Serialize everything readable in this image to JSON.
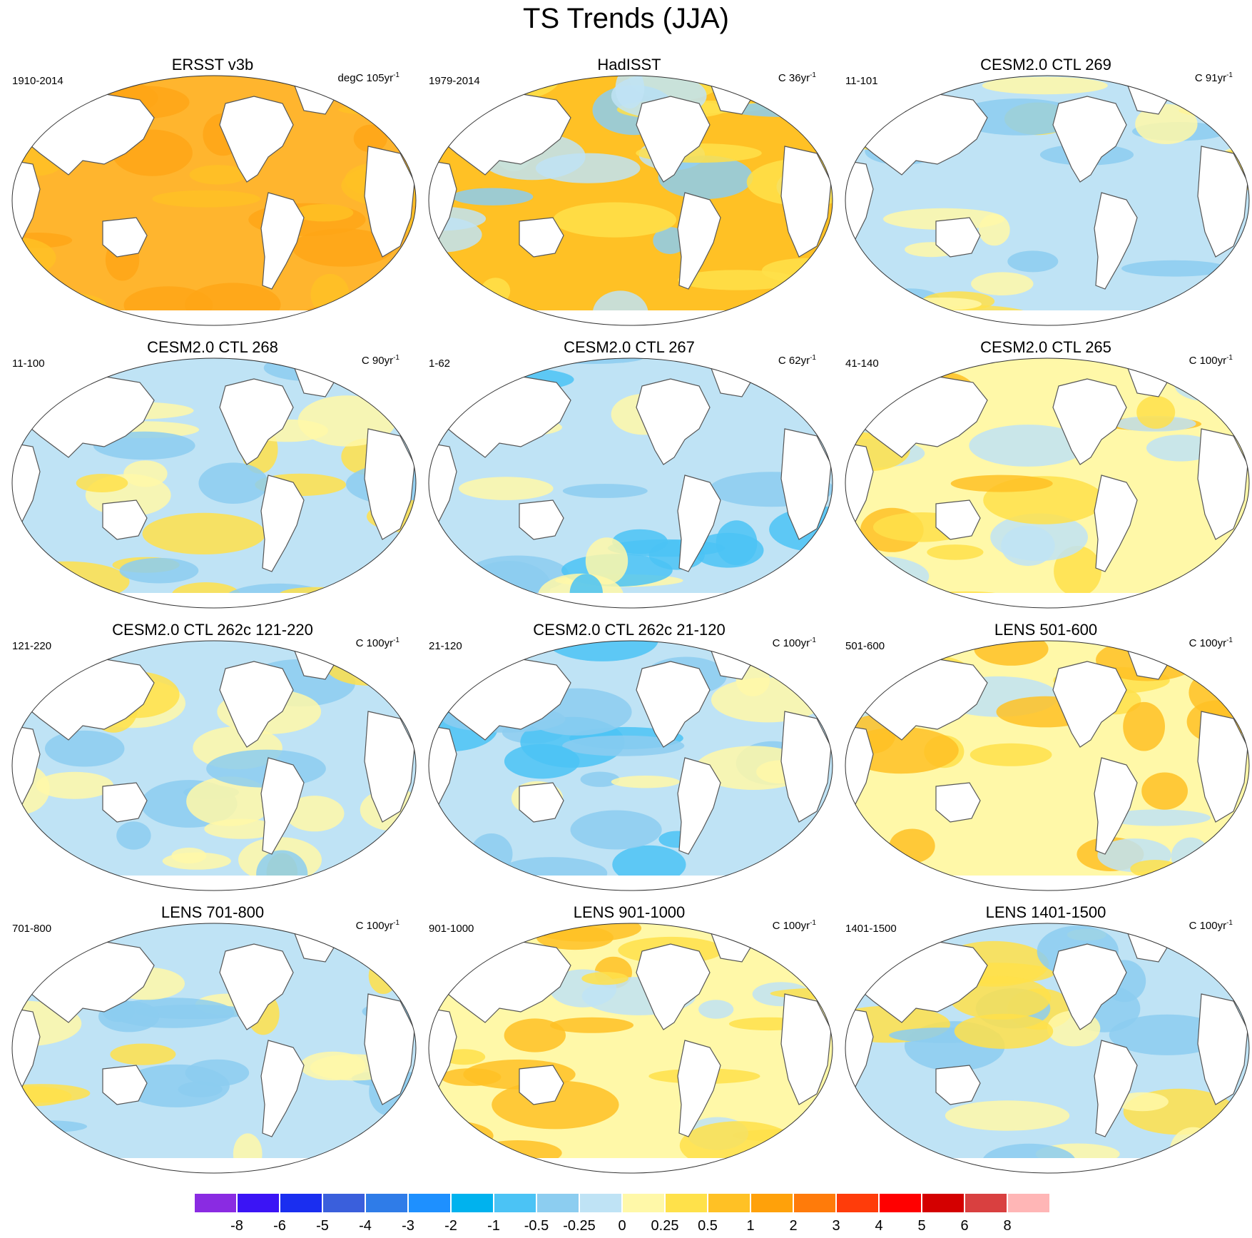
{
  "title": "TS Trends (JJA)",
  "panels": [
    {
      "title": "ERSST v3b",
      "period": "1910-2014",
      "units_prefix": "degC 105yr",
      "fill": "warm_strong"
    },
    {
      "title": "HadISST",
      "period": "1979-2014",
      "units_prefix": "C 36yr",
      "fill": "warm_mixed"
    },
    {
      "title": "CESM2.0 CTL 269",
      "period": "11-101",
      "units_prefix": "C 91yr",
      "fill": "mixed"
    },
    {
      "title": "CESM2.0 CTL 268",
      "period": "11-100",
      "units_prefix": "C 90yr",
      "fill": "mixed"
    },
    {
      "title": "CESM2.0 CTL 267",
      "period": "1-62",
      "units_prefix": "C 62yr",
      "fill": "cool"
    },
    {
      "title": "CESM2.0 CTL 265",
      "period": "41-140",
      "units_prefix": "C 100yr",
      "fill": "mixed_warm"
    },
    {
      "title": "CESM2.0 CTL 262c 121-220",
      "period": "121-220",
      "units_prefix": "C 100yr",
      "fill": "mixed"
    },
    {
      "title": "CESM2.0 CTL 262c 21-120",
      "period": "21-120",
      "units_prefix": "C 100yr",
      "fill": "cool"
    },
    {
      "title": "LENS 501-600",
      "period": "501-600",
      "units_prefix": "C 100yr",
      "fill": "mixed_warm"
    },
    {
      "title": "LENS 701-800",
      "period": "701-800",
      "units_prefix": "C 100yr",
      "fill": "mixed"
    },
    {
      "title": "LENS 901-1000",
      "period": "901-1000",
      "units_prefix": "C 100yr",
      "fill": "mixed_warm"
    },
    {
      "title": "LENS 1401-1500",
      "period": "1401-1500",
      "units_prefix": "C 100yr",
      "fill": "mixed"
    }
  ],
  "units_exponent": "-1",
  "colorbar": {
    "colors": [
      "#8a2be2",
      "#3b14f5",
      "#1a2ef0",
      "#3a5fdc",
      "#2f7ce8",
      "#1e90ff",
      "#00b2ee",
      "#4bc3f5",
      "#8ccdf0",
      "#bfe3f5",
      "#fff8a8",
      "#ffe14a",
      "#ffc125",
      "#ffa10a",
      "#ff7b0a",
      "#ff3c0a",
      "#ff0000",
      "#d40000",
      "#d94040",
      "#ffb6b6"
    ],
    "labels": [
      "-8",
      "-6",
      "-5",
      "-4",
      "-3",
      "-2",
      "-1",
      "-0.5",
      "-0.25",
      "0",
      "0.25",
      "0.5",
      "1",
      "2",
      "3",
      "4",
      "5",
      "6",
      "8"
    ]
  },
  "palette": {
    "warm_strong": [
      "#ffb52e",
      "#ffa616",
      "#ffc125"
    ],
    "warm_mixed": [
      "#ffc125",
      "#ffe14a",
      "#bfe3f5",
      "#8ccdf0"
    ],
    "mixed": [
      "#bfe3f5",
      "#fff8a8",
      "#ffe14a",
      "#8ccdf0"
    ],
    "mixed_warm": [
      "#fff8a8",
      "#bfe3f5",
      "#ffe14a",
      "#ffc125"
    ],
    "cool": [
      "#bfe3f5",
      "#8ccdf0",
      "#fff8a8",
      "#4bc3f5"
    ],
    "land": "#ffffff",
    "coast": "#555555"
  }
}
